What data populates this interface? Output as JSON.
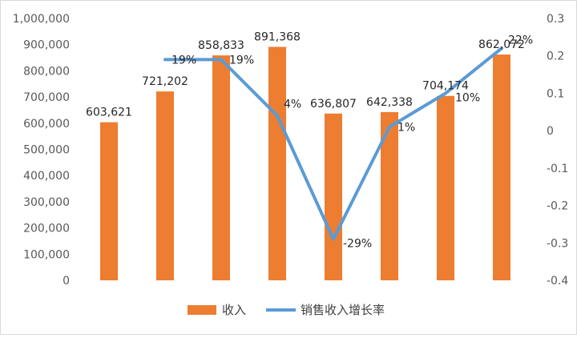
{
  "chart_data": {
    "type": "bar",
    "combo": "bar+line",
    "categories": [
      "",
      "",
      "",
      "",
      "",
      "",
      "",
      ""
    ],
    "series": [
      {
        "name": "收入",
        "type": "bar",
        "axis": "left",
        "color": "#ED7D31",
        "values": [
          603621,
          721202,
          858833,
          891368,
          636807,
          642338,
          704174,
          862072
        ],
        "data_labels": [
          "603,621",
          "721,202",
          "858,833",
          "891,368",
          "636,807",
          "642,338",
          "704,174",
          "862,072"
        ]
      },
      {
        "name": "销售收入增长率",
        "type": "line",
        "axis": "right",
        "color": "#5B9BD5",
        "values": [
          null,
          0.19,
          0.19,
          0.04,
          -0.29,
          0.01,
          0.1,
          0.22
        ],
        "data_labels": [
          "",
          "19%",
          "19%",
          "4%",
          "-29%",
          "1%",
          "10%",
          "22%"
        ]
      }
    ],
    "left_axis": {
      "min": 0,
      "max": 1000000,
      "step": 100000,
      "tick_labels": [
        "0",
        "100,000",
        "200,000",
        "300,000",
        "400,000",
        "500,000",
        "600,000",
        "700,000",
        "800,000",
        "900,000",
        "1,000,000"
      ]
    },
    "right_axis": {
      "min": -0.4,
      "max": 0.3,
      "step": 0.1,
      "tick_labels": [
        "-0.4",
        "-0.3",
        "-0.2",
        "-0.1",
        "0",
        "0.1",
        "0.2",
        "0.3"
      ]
    },
    "grid": false,
    "legend": {
      "position": "bottom",
      "items": [
        "收入",
        "销售收入增长率"
      ]
    },
    "title": "",
    "xlabel": "",
    "ylabel": ""
  }
}
